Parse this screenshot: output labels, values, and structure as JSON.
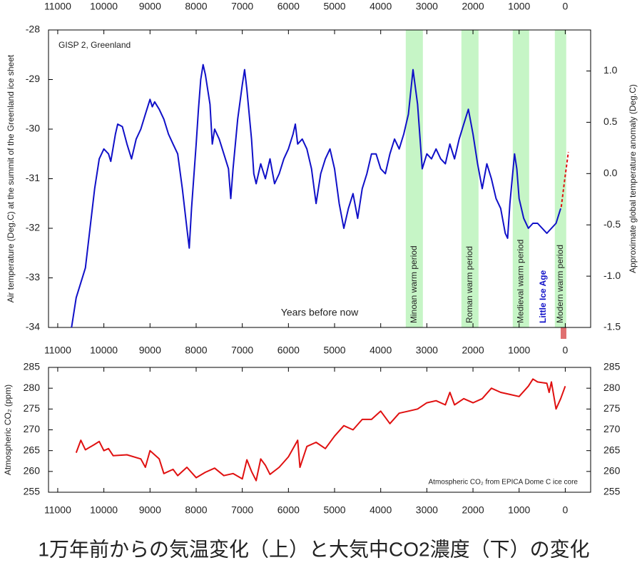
{
  "caption": "1万年前からの気温変化（上）と大気中CO2濃度（下）の変化",
  "chart_data": [
    {
      "type": "line",
      "ylabel": "Air temperature (Deg.C) at the summit of the Greenland ice sheet",
      "y2label": "Approximate global temperature anomaly (Deg.C)",
      "xlabel": "Years before now",
      "annotations": [
        "GISP 2, Greenland",
        "Little Ice Age"
      ],
      "periods": [
        {
          "label": "Minoan warm period",
          "xrange": [
            3457,
            3086
          ]
        },
        {
          "label": "Roman warm period",
          "xrange": [
            2251,
            1880
          ]
        },
        {
          "label": "Medieval warm period",
          "xrange": [
            1138,
            783
          ]
        },
        {
          "label": "Modern warm period",
          "xrange": [
            226,
            -21
          ]
        }
      ],
      "xlim": [
        11200,
        -550
      ],
      "xticks": [
        11000,
        10000,
        9000,
        8000,
        7000,
        6000,
        5000,
        4000,
        3000,
        2000,
        1000,
        0
      ],
      "ylim": [
        -34,
        -28
      ],
      "yticks": [
        -34,
        -33,
        -32,
        -31,
        -30,
        -29,
        -28
      ],
      "y2lim": [
        -1.5,
        1.4
      ],
      "y2ticks": [
        -1.5,
        {
          "value": -1.0,
          "label": "-1.0"
        },
        -0.5,
        {
          "value": 0.0,
          "label": "0.0"
        },
        0.5,
        {
          "value": 1.0,
          "label": "1.0"
        }
      ],
      "period_color": "#c6f5c6",
      "series": [
        {
          "color": "#1010c8",
          "dashed": false,
          "x": [
            10700,
            10600,
            10400,
            10300,
            10200,
            10100,
            10000,
            9900,
            9850,
            9750,
            9700,
            9600,
            9500,
            9400,
            9300,
            9200,
            9100,
            9000,
            8950,
            8900,
            8800,
            8700,
            8600,
            8500,
            8400,
            8300,
            8200,
            8150,
            8100,
            8000,
            7950,
            7900,
            7850,
            7800,
            7700,
            7650,
            7600,
            7500,
            7400,
            7300,
            7250,
            7200,
            7100,
            7000,
            6950,
            6900,
            6800,
            6750,
            6700,
            6600,
            6500,
            6400,
            6300,
            6200,
            6100,
            6000,
            5900,
            5850,
            5800,
            5700,
            5600,
            5500,
            5400,
            5300,
            5200,
            5100,
            5000,
            4900,
            4800,
            4700,
            4600,
            4500,
            4400,
            4300,
            4200,
            4100,
            4000,
            3900,
            3800,
            3700,
            3600,
            3500,
            3400,
            3300,
            3200,
            3100,
            3000,
            2900,
            2800,
            2700,
            2600,
            2500,
            2400,
            2300,
            2200,
            2100,
            2000,
            1900,
            1800,
            1700,
            1600,
            1500,
            1400,
            1300,
            1250,
            1200,
            1100,
            1050,
            1000,
            900,
            800,
            700,
            600,
            500,
            400,
            300,
            200,
            100
          ],
          "values": [
            -34.0,
            -33.4,
            -32.8,
            -32.0,
            -31.2,
            -30.6,
            -30.4,
            -30.5,
            -30.65,
            -30.1,
            -29.9,
            -29.95,
            -30.3,
            -30.6,
            -30.2,
            -30.0,
            -29.7,
            -29.4,
            -29.55,
            -29.45,
            -29.6,
            -29.8,
            -30.1,
            -30.3,
            -30.5,
            -31.2,
            -32.0,
            -32.4,
            -31.6,
            -30.3,
            -29.6,
            -29.0,
            -28.7,
            -28.9,
            -29.5,
            -30.3,
            -30.0,
            -30.2,
            -30.5,
            -30.8,
            -31.4,
            -30.8,
            -29.8,
            -29.1,
            -28.8,
            -29.2,
            -30.2,
            -30.9,
            -31.1,
            -30.7,
            -31.0,
            -30.6,
            -31.1,
            -30.9,
            -30.6,
            -30.4,
            -30.1,
            -29.9,
            -30.3,
            -30.2,
            -30.4,
            -30.8,
            -31.5,
            -30.9,
            -30.6,
            -30.4,
            -30.8,
            -31.5,
            -32.0,
            -31.6,
            -31.3,
            -31.8,
            -31.2,
            -30.9,
            -30.5,
            -30.5,
            -30.8,
            -30.9,
            -30.5,
            -30.2,
            -30.4,
            -30.1,
            -29.7,
            -28.8,
            -29.5,
            -30.8,
            -30.5,
            -30.6,
            -30.4,
            -30.6,
            -30.7,
            -30.3,
            -30.6,
            -30.2,
            -29.9,
            -29.6,
            -30.1,
            -30.7,
            -31.2,
            -30.7,
            -31.0,
            -31.4,
            -31.6,
            -32.1,
            -32.2,
            -31.5,
            -30.5,
            -30.8,
            -31.4,
            -31.8,
            -32.0,
            -31.9,
            -31.9,
            -32.0,
            -32.1,
            -32.0,
            -31.9,
            -31.6
          ]
        },
        {
          "color": "#e01010",
          "dashed": true,
          "x": [
            87,
            10,
            -67
          ],
          "values": [
            -31.57,
            -31.0,
            -30.46
          ]
        }
      ]
    },
    {
      "type": "line",
      "ylabel": "Atmospheric CO₂ (ppm)",
      "annotations": [
        "Atmospheric CO₂ from EPICA Dome C ice core"
      ],
      "xlim": [
        11200,
        -550
      ],
      "xticks": [
        11000,
        10000,
        9000,
        8000,
        7000,
        6000,
        5000,
        4000,
        3000,
        2000,
        1000,
        0
      ],
      "ylim": [
        255,
        285
      ],
      "yticks": [
        255,
        260,
        265,
        270,
        275,
        280,
        285
      ],
      "y2lim": [
        255,
        285
      ],
      "y2ticks": [
        255,
        260,
        265,
        270,
        275,
        280,
        285
      ],
      "series": [
        {
          "color": "#e01010",
          "dashed": false,
          "x": [
            10600,
            10500,
            10400,
            10200,
            10100,
            10000,
            9900,
            9800,
            9500,
            9200,
            9100,
            9000,
            8800,
            8700,
            8500,
            8400,
            8200,
            8000,
            7800,
            7600,
            7400,
            7200,
            7000,
            6900,
            6800,
            6700,
            6600,
            6500,
            6400,
            6200,
            6000,
            5800,
            5750,
            5600,
            5400,
            5200,
            5000,
            4800,
            4600,
            4400,
            4200,
            4000,
            3800,
            3600,
            3400,
            3200,
            3000,
            2800,
            2600,
            2500,
            2400,
            2200,
            2000,
            1800,
            1600,
            1400,
            1200,
            1000,
            800,
            700,
            600,
            400,
            350,
            300,
            200,
            100,
            0
          ],
          "values": [
            264.5,
            267.5,
            265.2,
            266.5,
            267.2,
            265,
            265.5,
            263.8,
            264,
            263,
            261,
            265,
            263,
            259.5,
            260.5,
            259,
            261,
            258.5,
            259.8,
            260.8,
            259,
            259.5,
            258.2,
            262.8,
            260,
            257.8,
            263,
            261.5,
            259.3,
            261,
            263.5,
            267.5,
            261,
            266,
            267,
            265.5,
            268.5,
            271,
            270,
            272.5,
            272.5,
            274.5,
            271.5,
            274,
            274.5,
            275,
            276.5,
            277,
            276,
            279,
            276,
            277.5,
            276.5,
            277.5,
            280,
            279,
            278.5,
            278,
            280.5,
            282.2,
            281.5,
            281.2,
            279,
            281.5,
            275,
            277.5,
            280.5
          ]
        }
      ]
    }
  ]
}
